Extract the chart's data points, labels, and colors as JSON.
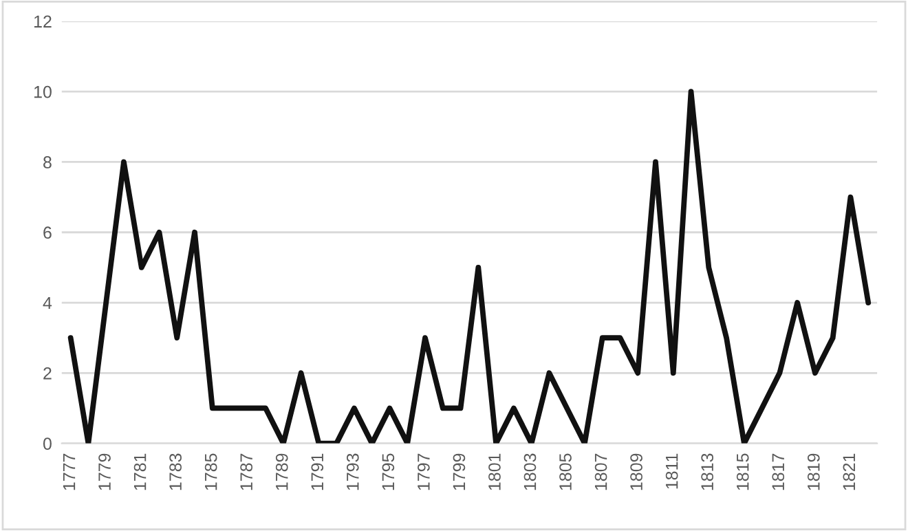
{
  "chart_data": {
    "type": "line",
    "categories": [
      "1777",
      null,
      "1779",
      null,
      "1781",
      null,
      "1783",
      null,
      "1785",
      null,
      "1787",
      null,
      "1789",
      null,
      "1791",
      null,
      "1793",
      null,
      "1795",
      null,
      "1797",
      null,
      "1799",
      null,
      "1801",
      null,
      "1803",
      null,
      "1805",
      null,
      "1807",
      null,
      "1809",
      null,
      "1811",
      null,
      "1813",
      null,
      "1815",
      null,
      "1817",
      null,
      "1819",
      null,
      "1821",
      null
    ],
    "series": [
      {
        "color": "#111111",
        "values": [
          3,
          0,
          4,
          8,
          5,
          6,
          3,
          6,
          1,
          1,
          1,
          1,
          0,
          2,
          0,
          0,
          1,
          0,
          1,
          0,
          3,
          1,
          1,
          5,
          0,
          1,
          0,
          2,
          1,
          0,
          3,
          3,
          2,
          8,
          2,
          10,
          5,
          3,
          0,
          1,
          2,
          4,
          2,
          3,
          7,
          4
        ]
      }
    ],
    "ylim": [
      0,
      12
    ],
    "yticks": [
      0,
      2,
      4,
      6,
      8,
      10,
      12
    ],
    "grid": "y",
    "marker": "none",
    "line_style": "solid",
    "legend": false
  }
}
